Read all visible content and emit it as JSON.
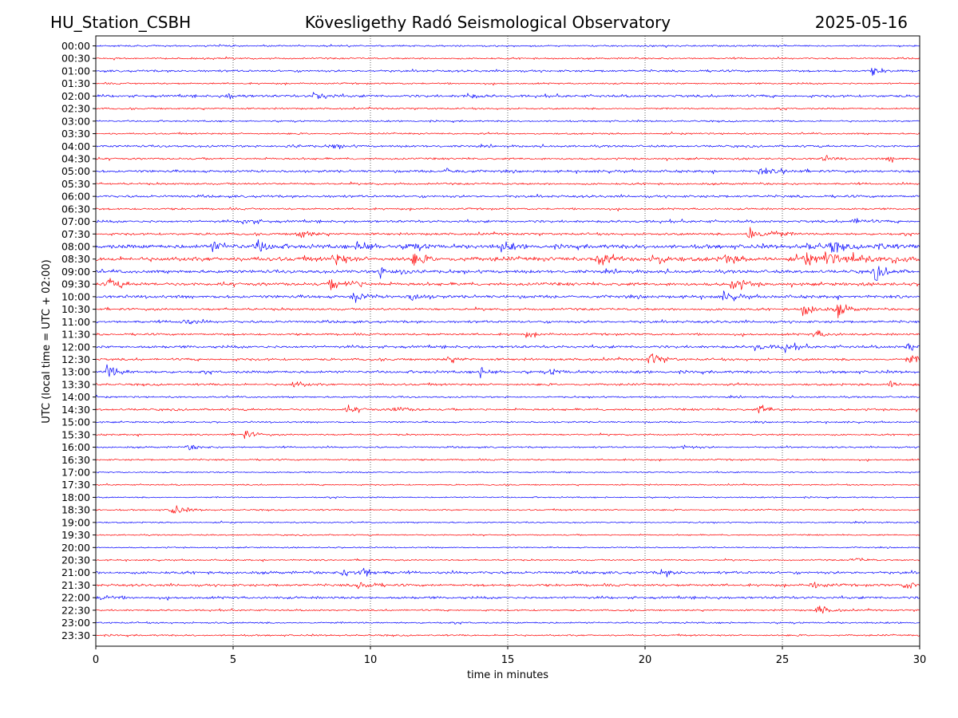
{
  "header": {
    "station": "HU_Station_CSBH",
    "title": "Kövesligethy Radó Seismological Observatory",
    "date": "2025-05-16"
  },
  "chart_data": {
    "type": "line",
    "chart_kind": "helicorder",
    "xlabel": "time in minutes",
    "ylabel": "UTC (local time = UTC + 02:00)",
    "xlim": [
      0,
      30
    ],
    "x_ticks": [
      0,
      5,
      10,
      15,
      20,
      25,
      30
    ],
    "x_gridlines": [
      5,
      10,
      15,
      20,
      25
    ],
    "grid": "vertical dotted",
    "trace_colors": [
      "#0000ff",
      "#ff0000"
    ],
    "rows": [
      "00:00",
      "00:30",
      "01:00",
      "01:30",
      "02:00",
      "02:30",
      "03:00",
      "03:30",
      "04:00",
      "04:30",
      "05:00",
      "05:30",
      "06:00",
      "06:30",
      "07:00",
      "07:30",
      "08:00",
      "08:30",
      "09:00",
      "09:30",
      "10:00",
      "10:30",
      "11:00",
      "11:30",
      "12:00",
      "12:30",
      "13:00",
      "13:30",
      "14:00",
      "14:30",
      "15:00",
      "15:30",
      "16:00",
      "16:30",
      "17:00",
      "17:30",
      "18:00",
      "18:30",
      "19:00",
      "19:30",
      "20:00",
      "20:30",
      "21:00",
      "21:30",
      "22:00",
      "22:30",
      "23:00",
      "23:30"
    ],
    "noise_level": [
      1,
      1,
      1.3,
      1,
      1.5,
      1,
      1,
      1,
      1.3,
      1.2,
      1.5,
      1.2,
      1.5,
      1.2,
      1.5,
      1.4,
      2.4,
      2.6,
      1.9,
      1.9,
      1.8,
      1.4,
      1.5,
      1.3,
      1.6,
      1.4,
      1.6,
      1.3,
      1,
      1.3,
      1,
      1,
      1,
      1,
      0.8,
      0.8,
      0.8,
      0.9,
      0.8,
      0.8,
      0.8,
      0.9,
      1.6,
      1.5,
      1.5,
      1,
      1,
      1
    ],
    "events": [
      {
        "row": "01:00",
        "t": 28.3,
        "amp": 4
      },
      {
        "row": "02:00",
        "t": 8.0,
        "amp": 6
      },
      {
        "row": "02:00",
        "t": 4.8,
        "amp": 3
      },
      {
        "row": "02:00",
        "t": 13.5,
        "amp": 3
      },
      {
        "row": "04:00",
        "t": 7.0,
        "amp": 3
      },
      {
        "row": "04:00",
        "t": 8.6,
        "amp": 3
      },
      {
        "row": "04:30",
        "t": 26.5,
        "amp": 3
      },
      {
        "row": "04:30",
        "t": 28.9,
        "amp": 3
      },
      {
        "row": "05:00",
        "t": 12.8,
        "amp": 4
      },
      {
        "row": "05:00",
        "t": 24.2,
        "amp": 4
      },
      {
        "row": "05:00",
        "t": 25.0,
        "amp": 3
      },
      {
        "row": "07:00",
        "t": 5.4,
        "amp": 4
      },
      {
        "row": "07:00",
        "t": 27.6,
        "amp": 4
      },
      {
        "row": "07:30",
        "t": 7.4,
        "amp": 6
      },
      {
        "row": "07:30",
        "t": 23.8,
        "amp": 11
      },
      {
        "row": "07:30",
        "t": 24.7,
        "amp": 4
      },
      {
        "row": "08:00",
        "t": 4.3,
        "amp": 6
      },
      {
        "row": "08:00",
        "t": 5.9,
        "amp": 8
      },
      {
        "row": "08:00",
        "t": 9.6,
        "amp": 8
      },
      {
        "row": "08:00",
        "t": 11.4,
        "amp": 5
      },
      {
        "row": "08:00",
        "t": 14.8,
        "amp": 5
      },
      {
        "row": "08:00",
        "t": 26.0,
        "amp": 5
      },
      {
        "row": "08:00",
        "t": 26.8,
        "amp": 6
      },
      {
        "row": "08:00",
        "t": 28.4,
        "amp": 5
      },
      {
        "row": "08:30",
        "t": 8.7,
        "amp": 7
      },
      {
        "row": "08:30",
        "t": 11.6,
        "amp": 6
      },
      {
        "row": "08:30",
        "t": 18.2,
        "amp": 8
      },
      {
        "row": "08:30",
        "t": 20.3,
        "amp": 8
      },
      {
        "row": "08:30",
        "t": 22.9,
        "amp": 5
      },
      {
        "row": "08:30",
        "t": 25.8,
        "amp": 7
      },
      {
        "row": "08:30",
        "t": 26.6,
        "amp": 8
      },
      {
        "row": "08:30",
        "t": 27.6,
        "amp": 7
      },
      {
        "row": "08:30",
        "t": 29.1,
        "amp": 5
      },
      {
        "row": "09:00",
        "t": 10.3,
        "amp": 6
      },
      {
        "row": "09:00",
        "t": 11.2,
        "amp": 5
      },
      {
        "row": "09:00",
        "t": 28.4,
        "amp": 9
      },
      {
        "row": "09:30",
        "t": 0.5,
        "amp": 7
      },
      {
        "row": "09:30",
        "t": 8.6,
        "amp": 6
      },
      {
        "row": "09:30",
        "t": 9.3,
        "amp": 5
      },
      {
        "row": "09:30",
        "t": 23.2,
        "amp": 8
      },
      {
        "row": "10:00",
        "t": 9.4,
        "amp": 6
      },
      {
        "row": "10:00",
        "t": 11.5,
        "amp": 5
      },
      {
        "row": "10:00",
        "t": 22.9,
        "amp": 6
      },
      {
        "row": "10:30",
        "t": 25.8,
        "amp": 9
      },
      {
        "row": "10:30",
        "t": 27.0,
        "amp": 8
      },
      {
        "row": "11:00",
        "t": 3.2,
        "amp": 4
      },
      {
        "row": "11:30",
        "t": 26.2,
        "amp": 5
      },
      {
        "row": "11:30",
        "t": 15.7,
        "amp": 3
      },
      {
        "row": "12:00",
        "t": 25.0,
        "amp": 7
      },
      {
        "row": "12:00",
        "t": 24.0,
        "amp": 4
      },
      {
        "row": "12:00",
        "t": 29.6,
        "amp": 5
      },
      {
        "row": "12:30",
        "t": 20.2,
        "amp": 8
      },
      {
        "row": "12:30",
        "t": 12.8,
        "amp": 4
      },
      {
        "row": "12:30",
        "t": 29.6,
        "amp": 5
      },
      {
        "row": "13:00",
        "t": 0.4,
        "amp": 9
      },
      {
        "row": "13:00",
        "t": 14.0,
        "amp": 5
      },
      {
        "row": "13:00",
        "t": 16.6,
        "amp": 3
      },
      {
        "row": "13:30",
        "t": 7.2,
        "amp": 4
      },
      {
        "row": "13:30",
        "t": 28.9,
        "amp": 4
      },
      {
        "row": "14:30",
        "t": 24.2,
        "amp": 5
      },
      {
        "row": "14:30",
        "t": 10.9,
        "amp": 4
      },
      {
        "row": "14:30",
        "t": 9.2,
        "amp": 4
      },
      {
        "row": "15:30",
        "t": 5.4,
        "amp": 5
      },
      {
        "row": "16:00",
        "t": 21.4,
        "amp": 3
      },
      {
        "row": "16:00",
        "t": 3.4,
        "amp": 3
      },
      {
        "row": "18:30",
        "t": 2.8,
        "amp": 7
      },
      {
        "row": "21:00",
        "t": 9.7,
        "amp": 6
      },
      {
        "row": "21:00",
        "t": 9.0,
        "amp": 4
      },
      {
        "row": "21:00",
        "t": 20.6,
        "amp": 4
      },
      {
        "row": "21:30",
        "t": 9.6,
        "amp": 6
      },
      {
        "row": "21:30",
        "t": 26.1,
        "amp": 4
      },
      {
        "row": "21:30",
        "t": 29.5,
        "amp": 5
      },
      {
        "row": "22:00",
        "t": 0.2,
        "amp": 4
      },
      {
        "row": "22:30",
        "t": 26.3,
        "amp": 6
      },
      {
        "row": "20:30",
        "t": 27.6,
        "amp": 3
      }
    ]
  }
}
